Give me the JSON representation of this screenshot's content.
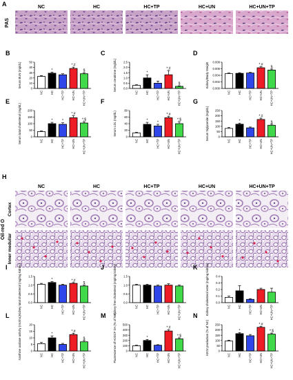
{
  "figure": {
    "groups": [
      "NC",
      "HC",
      "HC+TP",
      "HC+UN",
      "HC+UN+TP"
    ],
    "colors": [
      "#ffffff",
      "#000000",
      "#2f47e8",
      "#ee1c24",
      "#3fd94a"
    ],
    "panel_letters": [
      "A",
      "B",
      "C",
      "D",
      "E",
      "F",
      "G",
      "H",
      "I",
      "J",
      "K",
      "L",
      "M",
      "N"
    ],
    "stain_pas": "PAS",
    "stain_oilred": "Oil-red O",
    "region_cortex": "Cortex",
    "region_inner": "Inner medullar"
  },
  "chart_data": [
    {
      "id": "B",
      "type": "bar",
      "ylabel": "Serum BUN (mg/dL)",
      "ylim": [
        0,
        50
      ],
      "yticks": [
        "0",
        "10",
        "20",
        "30",
        "40",
        "50"
      ],
      "values": [
        23,
        29,
        26,
        38,
        28
      ],
      "errors": [
        1.5,
        2,
        2,
        2.5,
        2
      ],
      "sig": [
        "",
        "*",
        "",
        "*,#",
        "$"
      ]
    },
    {
      "id": "C",
      "type": "bar",
      "ylabel": "Serum creatinine (mg/dL)",
      "ylim": [
        0,
        2.5
      ],
      "yticks": [
        "0.0",
        "0.5",
        "1.0",
        "1.5",
        "2.0",
        "2.5"
      ],
      "values": [
        0.3,
        1.0,
        0.5,
        1.3,
        0.2
      ],
      "errors": [
        0.05,
        0.3,
        0.2,
        0.4,
        0.05
      ],
      "sig": [
        "",
        "*",
        "",
        "*,#",
        "$"
      ]
    },
    {
      "id": "D",
      "type": "bar",
      "ylabel": "Kidney/Body Weight",
      "ylim": [
        0,
        0.008
      ],
      "yticks": [
        "0.000",
        "0.002",
        "0.004",
        "0.006",
        "0.008"
      ],
      "values": [
        0.0045,
        0.0046,
        0.0047,
        0.0063,
        0.0056
      ],
      "errors": [
        0.0002,
        0.0002,
        0.0002,
        0.0003,
        0.0003
      ],
      "sig": [
        "",
        "",
        "",
        "*,#",
        "$"
      ]
    },
    {
      "id": "E",
      "type": "bar",
      "ylabel": "Serum total cholesterol (mg/dL)",
      "ylim": [
        0,
        200
      ],
      "yticks": [
        "0",
        "50",
        "100",
        "150",
        "200"
      ],
      "values": [
        40,
        100,
        95,
        145,
        105
      ],
      "errors": [
        5,
        10,
        12,
        15,
        10
      ],
      "sig": [
        "",
        "*",
        "*",
        "*,#",
        "*,$"
      ]
    },
    {
      "id": "F",
      "type": "bar",
      "ylabel": "Serum LDL (mg/dL)",
      "ylim": [
        0,
        80
      ],
      "yticks": [
        "0",
        "20",
        "40",
        "60",
        "80"
      ],
      "values": [
        12,
        38,
        33,
        58,
        40
      ],
      "errors": [
        2,
        6,
        5,
        4,
        6
      ],
      "sig": [
        "",
        "*",
        "*",
        "*,#",
        "*,$"
      ]
    },
    {
      "id": "G",
      "type": "bar",
      "ylabel": "Serum triglyceride (mg/dL)",
      "ylim": [
        0,
        250
      ],
      "yticks": [
        "0",
        "50",
        "100",
        "150",
        "200",
        "250"
      ],
      "values": [
        80,
        120,
        85,
        165,
        110
      ],
      "errors": [
        10,
        10,
        8,
        12,
        10
      ],
      "sig": [
        "",
        "*",
        "",
        "*,#",
        "$"
      ]
    },
    {
      "id": "I",
      "type": "bar",
      "ylabel": "Kidney total cholesterol (mg/mg kidney)",
      "ylim": [
        0,
        1.5
      ],
      "yticks": [
        "0.0",
        "0.5",
        "1.0",
        "1.5"
      ],
      "values": [
        1.05,
        1.15,
        1.0,
        1.1,
        0.95
      ],
      "errors": [
        0.05,
        0.05,
        0.05,
        0.05,
        0.05
      ],
      "sig": [
        "",
        "*",
        "",
        "*,#",
        "$"
      ]
    },
    {
      "id": "J",
      "type": "bar",
      "ylabel": "Kidney free cholesterol (mg/mg kidney)",
      "ylim": [
        0,
        1.5
      ],
      "yticks": [
        "0.0",
        "0.5",
        "1.0",
        "1.5"
      ],
      "values": [
        1.0,
        1.0,
        0.95,
        1.0,
        0.95
      ],
      "errors": [
        0.05,
        0.05,
        0.05,
        0.08,
        0.05
      ],
      "sig": [
        "",
        "",
        "",
        "",
        ""
      ]
    },
    {
      "id": "K",
      "type": "bar",
      "ylabel": "Kidney cholesterol ester (mg/mg kidney)",
      "ylim": [
        0,
        0.4
      ],
      "yticks": [
        "0.0",
        "0.1",
        "0.2",
        "0.3",
        "0.4"
      ],
      "values": [
        0.08,
        0.18,
        0.05,
        0.2,
        0.16
      ],
      "errors": [
        0.02,
        0.08,
        0.01,
        0.02,
        0.06
      ],
      "sig": [
        "",
        "",
        "",
        "",
        ""
      ]
    },
    {
      "id": "L",
      "type": "bar",
      "ylabel": "Xanthine oxidase activity (mU/mL)",
      "ylim": [
        0,
        20
      ],
      "yticks": [
        "0",
        "5",
        "10",
        "15",
        "20"
      ],
      "values": [
        5.5,
        10,
        5,
        12.5,
        7
      ],
      "errors": [
        1,
        1.5,
        0.8,
        1,
        1
      ],
      "sig": [
        "",
        "*",
        "",
        "*,#",
        "$"
      ]
    },
    {
      "id": "M",
      "type": "bar",
      "ylabel": "Fluorescence of H2DCF DA (% of NC)",
      "ylim": [
        0,
        500
      ],
      "yticks": [
        "0",
        "100",
        "200",
        "300",
        "400",
        "500"
      ],
      "values": [
        100,
        200,
        110,
        380,
        230
      ],
      "errors": [
        10,
        20,
        10,
        25,
        20
      ],
      "sig": [
        "",
        "*",
        "",
        "*,#",
        "*,$"
      ]
    },
    {
      "id": "N",
      "type": "bar",
      "ylabel": "H2O2 production (% of NC)",
      "ylim": [
        0,
        250
      ],
      "yticks": [
        "0",
        "50",
        "100",
        "150",
        "200",
        "250"
      ],
      "values": [
        95,
        165,
        145,
        225,
        160
      ],
      "errors": [
        8,
        10,
        12,
        8,
        10
      ],
      "sig": [
        "",
        "*",
        "",
        "*,#",
        "*,$"
      ]
    }
  ]
}
